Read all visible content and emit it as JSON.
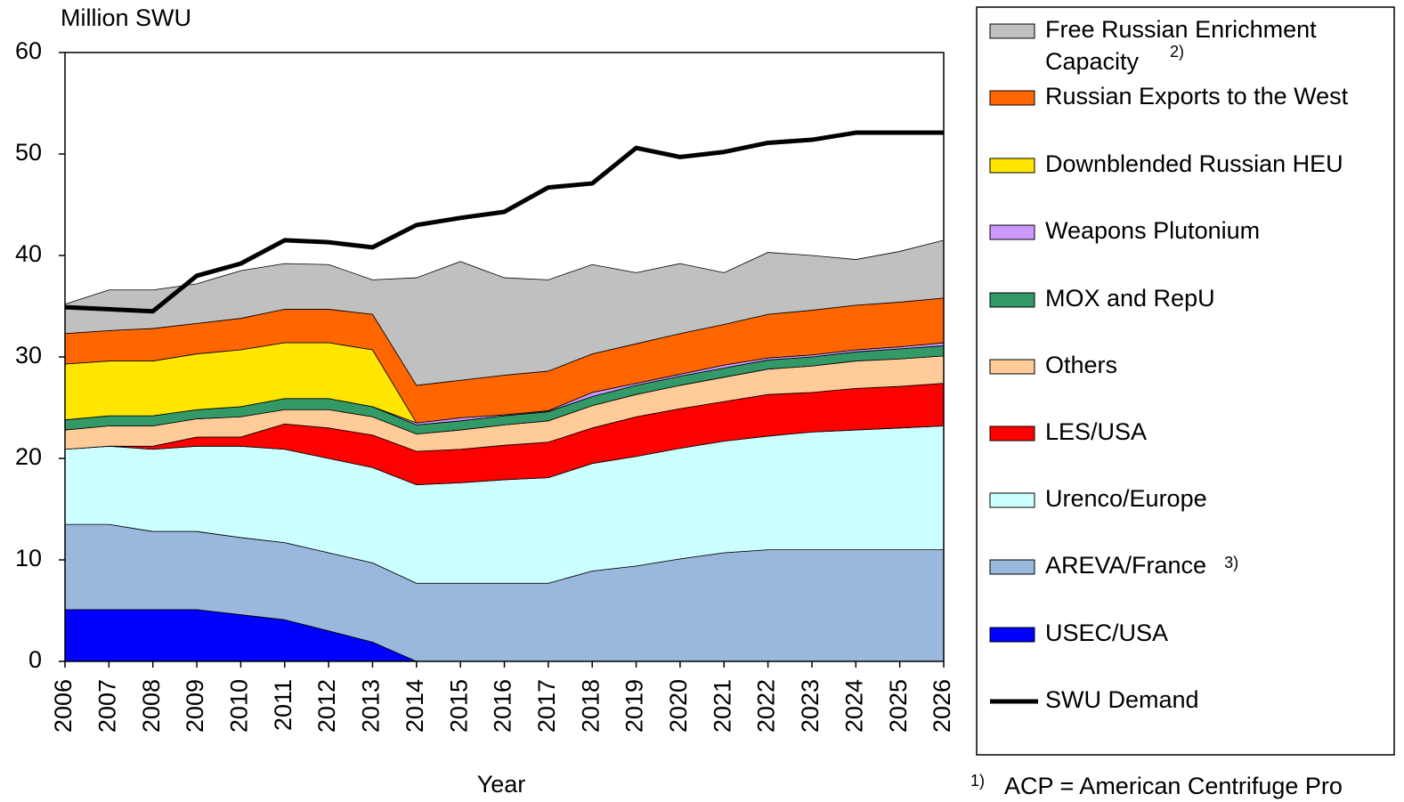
{
  "chart_data": {
    "type": "stacked_area",
    "y_axis_label": "Million SWU",
    "x_axis_label": "Year",
    "categories": [
      "2006",
      "2007",
      "2008",
      "2009",
      "2010",
      "2011",
      "2012",
      "2013",
      "2014",
      "2015",
      "2016",
      "2017",
      "2018",
      "2019",
      "2020",
      "2021",
      "2022",
      "2023",
      "2024",
      "2025",
      "2026"
    ],
    "ylim": [
      0,
      60
    ],
    "yticks": [
      0,
      10,
      20,
      30,
      40,
      50,
      60
    ],
    "series": [
      {
        "name": "USEC/USA",
        "color": "#0000ff",
        "values": [
          5.1,
          5.1,
          5.1,
          5.1,
          4.6,
          4.1,
          3.0,
          1.9,
          0,
          0,
          0,
          0,
          0,
          0,
          0,
          0,
          0,
          0,
          0,
          0,
          0
        ]
      },
      {
        "name": "AREVA/France",
        "note": "3)",
        "color": "#99b8dc",
        "values": [
          8.4,
          8.4,
          7.7,
          7.7,
          7.6,
          7.6,
          7.7,
          7.8,
          7.7,
          7.7,
          7.7,
          7.7,
          8.9,
          9.4,
          10.1,
          10.7,
          11.0,
          11.0,
          11.0,
          11.0,
          11.0
        ]
      },
      {
        "name": "Urenco/Europe",
        "color": "#ccffff",
        "values": [
          7.4,
          7.7,
          8.1,
          8.4,
          9.0,
          9.2,
          9.3,
          9.4,
          9.7,
          9.9,
          10.2,
          10.4,
          10.6,
          10.8,
          10.9,
          11.0,
          11.2,
          11.6,
          11.8,
          12.0,
          12.2
        ]
      },
      {
        "name": "LES/USA",
        "color": "#ff0000",
        "values": [
          0,
          0,
          0.3,
          0.9,
          0.9,
          2.5,
          3.0,
          3.2,
          3.3,
          3.3,
          3.4,
          3.5,
          3.5,
          3.9,
          3.9,
          3.9,
          4.1,
          3.9,
          4.1,
          4.1,
          4.2
        ]
      },
      {
        "name": "Others",
        "color": "#ffcc99",
        "values": [
          1.9,
          2.0,
          2.0,
          1.8,
          2.0,
          1.4,
          1.8,
          1.8,
          1.7,
          1.9,
          2.0,
          2.1,
          2.2,
          2.2,
          2.3,
          2.4,
          2.5,
          2.6,
          2.7,
          2.7,
          2.7
        ]
      },
      {
        "name": "MOX and RepU",
        "color": "#339966",
        "values": [
          1.0,
          1.0,
          1.0,
          0.9,
          1.0,
          1.1,
          1.1,
          1.0,
          0.9,
          0.9,
          0.9,
          0.9,
          0.9,
          0.9,
          0.9,
          0.9,
          0.9,
          0.9,
          0.9,
          1.0,
          1.0
        ]
      },
      {
        "name": "Weapons Plutonium",
        "color": "#cc99ff",
        "values": [
          0,
          0,
          0,
          0,
          0,
          0,
          0,
          0,
          0.2,
          0.3,
          0.1,
          0.1,
          0.4,
          0.2,
          0.2,
          0.3,
          0.2,
          0.2,
          0.2,
          0.2,
          0.3
        ]
      },
      {
        "name": "Downblended Russian HEU",
        "color": "#ffe600",
        "values": [
          5.5,
          5.4,
          5.4,
          5.5,
          5.6,
          5.5,
          5.5,
          5.6,
          0,
          0,
          0,
          0,
          0,
          0,
          0,
          0,
          0,
          0,
          0,
          0,
          0
        ]
      },
      {
        "name": "Russian Exports to the West",
        "color": "#ff6600",
        "values": [
          3.0,
          3.0,
          3.2,
          3.0,
          3.1,
          3.3,
          3.3,
          3.5,
          3.7,
          3.7,
          3.9,
          3.9,
          3.8,
          3.9,
          4.0,
          4.0,
          4.3,
          4.4,
          4.4,
          4.4,
          4.4
        ]
      },
      {
        "name": "Free Russian Enrichment Capacity",
        "note": "2)",
        "color": "#c0c0c0",
        "values": [
          2.9,
          4.0,
          3.8,
          3.9,
          4.7,
          4.5,
          4.4,
          3.4,
          10.6,
          11.7,
          9.6,
          9.0,
          8.8,
          7.0,
          6.9,
          5.1,
          6.1,
          5.4,
          4.5,
          5.0,
          5.7
        ]
      }
    ],
    "line": {
      "name": "SWU Demand",
      "color": "#000000",
      "values": [
        34.9,
        34.7,
        34.5,
        38.0,
        39.2,
        41.5,
        41.3,
        40.8,
        43.0,
        43.7,
        44.3,
        46.7,
        47.1,
        50.6,
        49.7,
        50.2,
        51.1,
        51.4,
        52.1,
        52.1,
        52.1
      ]
    },
    "footnote": {
      "marker": "1)",
      "text": "ACP = American Centrifuge Pro"
    }
  }
}
